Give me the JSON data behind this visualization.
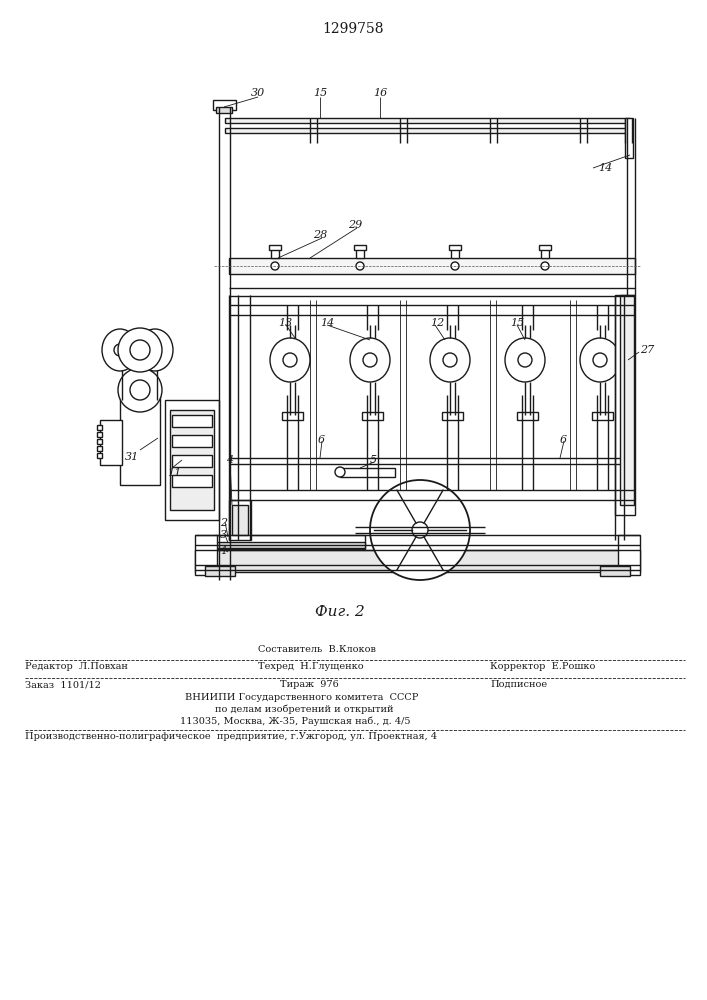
{
  "patent_number": "1299758",
  "fig_label": "Фиг. 2",
  "bg_color": "#ffffff",
  "line_color": "#1a1a1a",
  "footer": {
    "editor_label": "Редактор  Л.Повхан",
    "composer_label": "Составитель  В.Клоков",
    "techred_label": "Техред  Н.Глущенко",
    "corrector_label": "Корректор  Е.Рошко",
    "order_label": "Заказ  1101/12",
    "tirazh_label": "Тираж  976",
    "podpisnoe_label": "Подписное",
    "vniipri_line1": "ВНИИПИ Государственного комитета  СССР",
    "vniipri_line2": "по делам изобретений и открытий",
    "vniipri_line3": "113035, Москва, Ж-35, Раушская наб., д. 4/5",
    "production": "Производственно-полиграфическое  предприятие, г.Ужгород, ул. Проектная, 4"
  }
}
